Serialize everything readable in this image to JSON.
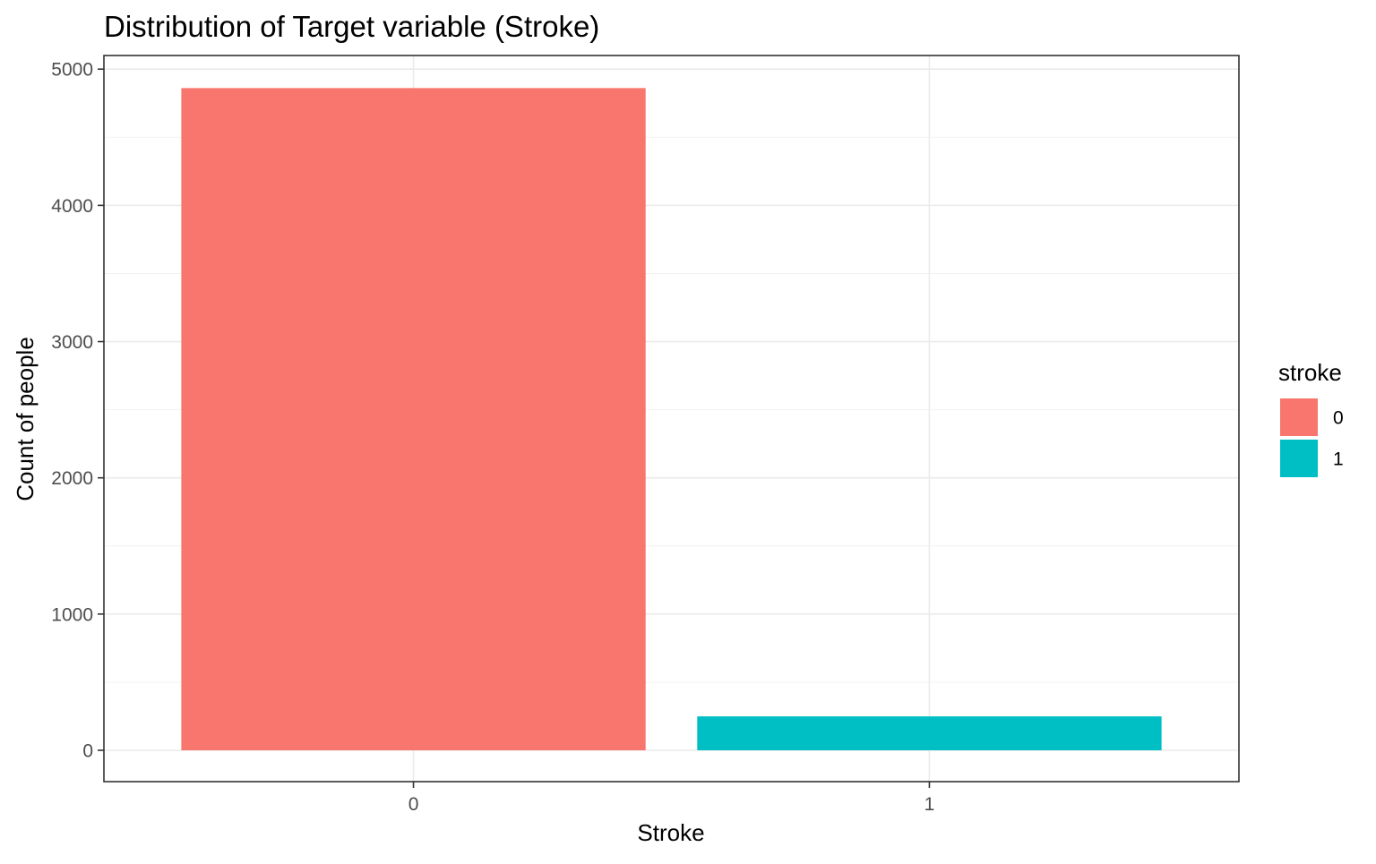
{
  "chart_data": {
    "type": "bar",
    "title": "Distribution of Target variable (Stroke)",
    "xlabel": "Stroke",
    "ylabel": "Count of people",
    "categories": [
      "0",
      "1"
    ],
    "values": [
      4861,
      249
    ],
    "colors": [
      "#F8766D",
      "#00BFC4"
    ],
    "ylim": [
      -230,
      5100
    ],
    "yticks": [
      0,
      1000,
      2000,
      3000,
      4000,
      5000
    ],
    "grid": true,
    "legend": {
      "title": "stroke",
      "position": "right",
      "items": [
        "0",
        "1"
      ]
    }
  }
}
